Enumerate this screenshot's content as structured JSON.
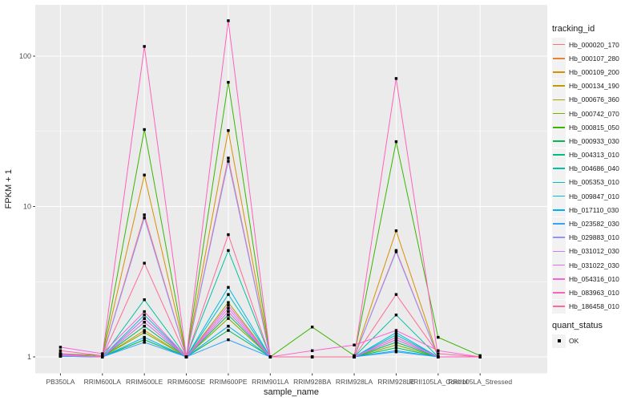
{
  "figure": {
    "bg": "#FFFFFF",
    "panel_bg": "#EBEBEB",
    "grid_color": "#FFFFFF",
    "tick_mark_color": "#333333",
    "tick_label_color": "#4D4D4D",
    "title_color": "#1A1A1A",
    "point_color": "#000000"
  },
  "legend": {
    "tracking_title": "tracking_id",
    "quant_title": "quant_status",
    "quant_items": [
      {
        "label": "OK",
        "marker": "black-square"
      }
    ]
  },
  "chart_data": {
    "type": "line",
    "title": "",
    "xlabel": "sample_name",
    "ylabel": "FPKM + 1",
    "yscale": "log10",
    "ylim": [
      0.78,
      215
    ],
    "y_ticks": [
      {
        "label": "1",
        "value": 1
      },
      {
        "label": "10",
        "value": 10
      },
      {
        "label": "100",
        "value": 100
      }
    ],
    "y_minor_ticks": [
      3.1623,
      31.623
    ],
    "grid": true,
    "legend_position": "right",
    "point_marker": "black-square",
    "x_categories": [
      "PB350LA",
      "RRIM600LA",
      "RRIM600LE",
      "RRIM600SE",
      "RRIM600PE",
      "RRIM901LA",
      "RRIM928BA",
      "RRIM928LA",
      "RRIM928LE",
      "RRII105LA_Control",
      "RRII105LA_Stressed"
    ],
    "series": [
      {
        "name": "Hb_000020_170",
        "color": "#F8766D",
        "values": [
          1.05,
          1.0,
          8.8,
          1.0,
          21,
          1.0,
          1.0,
          1.0,
          5.1,
          1.0,
          1.0
        ]
      },
      {
        "name": "Hb_000107_280",
        "color": "#EA8331",
        "values": [
          1.02,
          1.0,
          1.6,
          1.0,
          2.0,
          1.0,
          1.0,
          1.0,
          1.3,
          1.0,
          1.0
        ]
      },
      {
        "name": "Hb_000109_200",
        "color": "#D89000",
        "values": [
          1.03,
          1.0,
          16.2,
          1.0,
          32,
          1.0,
          1.0,
          1.0,
          6.9,
          1.0,
          1.0
        ]
      },
      {
        "name": "Hb_000134_190",
        "color": "#C09B00",
        "values": [
          1.02,
          1.0,
          1.5,
          1.0,
          1.9,
          1.0,
          1.0,
          1.0,
          1.25,
          1.0,
          1.0
        ]
      },
      {
        "name": "Hb_000676_360",
        "color": "#A3A500",
        "values": [
          1.04,
          1.0,
          1.7,
          1.0,
          2.3,
          1.0,
          1.0,
          1.0,
          1.35,
          1.0,
          1.0
        ]
      },
      {
        "name": "Hb_000742_070",
        "color": "#7CAE00",
        "values": [
          1.02,
          1.0,
          1.45,
          1.0,
          1.8,
          1.0,
          1.0,
          1.0,
          1.2,
          1.0,
          1.0
        ]
      },
      {
        "name": "Hb_000815_050",
        "color": "#39B600",
        "values": [
          1.05,
          1.02,
          32.5,
          1.0,
          67,
          1.0,
          1.58,
          1.02,
          27,
          1.35,
          1.02
        ]
      },
      {
        "name": "Hb_000933_030",
        "color": "#00BB4E",
        "values": [
          1.01,
          1.0,
          1.3,
          1.0,
          1.5,
          1.0,
          1.0,
          1.0,
          1.15,
          1.0,
          1.0
        ]
      },
      {
        "name": "Hb_004313_010",
        "color": "#00BF7D",
        "values": [
          1.02,
          1.0,
          1.6,
          1.0,
          1.9,
          1.0,
          1.0,
          1.0,
          1.25,
          1.0,
          1.0
        ]
      },
      {
        "name": "Hb_004686_040",
        "color": "#00C1A3",
        "values": [
          1.03,
          1.0,
          2.4,
          1.0,
          5.1,
          1.0,
          1.0,
          1.0,
          1.9,
          1.0,
          1.0
        ]
      },
      {
        "name": "Hb_005353_010",
        "color": "#00BFC4",
        "values": [
          1.02,
          1.0,
          1.9,
          1.0,
          2.6,
          1.0,
          1.0,
          1.0,
          1.4,
          1.0,
          1.0
        ]
      },
      {
        "name": "Hb_009847_010",
        "color": "#00BAE0",
        "values": [
          1.02,
          1.0,
          1.8,
          1.0,
          2.9,
          1.0,
          1.0,
          1.0,
          1.45,
          1.0,
          1.0
        ]
      },
      {
        "name": "Hb_017110_030",
        "color": "#00B0F6",
        "values": [
          1.01,
          1.0,
          1.35,
          1.0,
          1.6,
          1.0,
          1.0,
          1.0,
          1.1,
          1.0,
          1.0
        ]
      },
      {
        "name": "Hb_023582_030",
        "color": "#35A2FF",
        "values": [
          1.01,
          1.0,
          1.25,
          1.0,
          1.3,
          1.0,
          1.0,
          1.0,
          1.08,
          1.0,
          1.0
        ]
      },
      {
        "name": "Hb_029883_010",
        "color": "#9590FF",
        "values": [
          1.04,
          1.0,
          8.4,
          1.0,
          20,
          1.0,
          1.0,
          1.0,
          5.0,
          1.0,
          1.0
        ]
      },
      {
        "name": "Hb_031012_030",
        "color": "#C77CFF",
        "values": [
          1.02,
          1.0,
          1.7,
          1.0,
          2.0,
          1.0,
          1.0,
          1.0,
          1.3,
          1.0,
          1.0
        ]
      },
      {
        "name": "Hb_031022_030",
        "color": "#E76BF3",
        "values": [
          1.03,
          1.0,
          1.8,
          1.0,
          2.1,
          1.0,
          1.0,
          1.0,
          1.35,
          1.0,
          1.0
        ]
      },
      {
        "name": "Hb_054316_010",
        "color": "#FA62DB",
        "values": [
          1.16,
          1.05,
          2.0,
          1.0,
          2.2,
          1.0,
          1.1,
          1.2,
          1.5,
          1.1,
          1.0
        ]
      },
      {
        "name": "Hb_083963_010",
        "color": "#FF62BC",
        "values": [
          1.1,
          1.02,
          116,
          1.0,
          172,
          1.0,
          1.0,
          1.0,
          71,
          1.0,
          1.0
        ]
      },
      {
        "name": "Hb_186458_010",
        "color": "#FF6A98",
        "values": [
          1.05,
          1.0,
          4.2,
          1.0,
          6.5,
          1.0,
          1.0,
          1.0,
          2.6,
          1.05,
          1.0
        ]
      }
    ]
  }
}
